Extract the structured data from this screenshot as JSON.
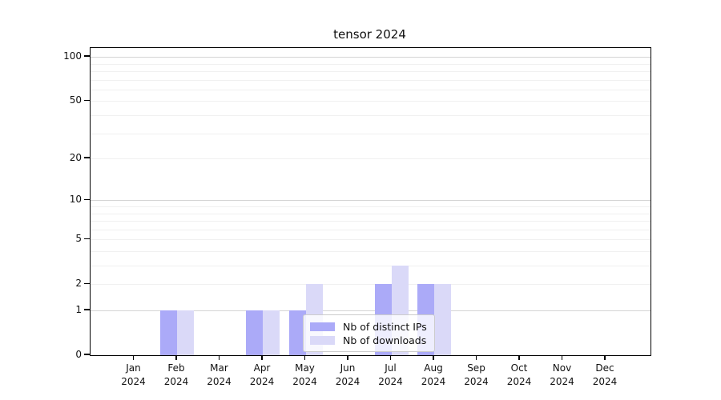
{
  "title": "tensor 2024",
  "chart_data": {
    "type": "bar",
    "title": "tensor 2024",
    "x_months": [
      "Jan",
      "Feb",
      "Mar",
      "Apr",
      "May",
      "Jun",
      "Jul",
      "Aug",
      "Sep",
      "Oct",
      "Nov",
      "Dec"
    ],
    "x_year": "2024",
    "categories": [
      "Jan 2024",
      "Feb 2024",
      "Mar 2024",
      "Apr 2024",
      "May 2024",
      "Jun 2024",
      "Jul 2024",
      "Aug 2024",
      "Sep 2024",
      "Oct 2024",
      "Nov 2024",
      "Dec 2024"
    ],
    "series": [
      {
        "name": "Nb of distinct IPs",
        "color": "#abaaf8",
        "values": [
          0,
          1,
          0,
          1,
          1,
          0,
          2,
          2,
          0,
          0,
          0,
          0
        ]
      },
      {
        "name": "Nb of downloads",
        "color": "#dad9f8",
        "values": [
          0,
          1,
          0,
          1,
          2,
          0,
          3,
          2,
          0,
          0,
          0,
          0
        ]
      }
    ],
    "y_scale": "log1p",
    "ylim": [
      0,
      115
    ],
    "y_ticks": [
      100,
      50,
      20,
      10,
      5,
      2,
      1,
      0
    ],
    "grid_major_values": [
      1,
      10,
      100
    ],
    "grid_minor_values": [
      2,
      3,
      4,
      5,
      6,
      7,
      8,
      9,
      20,
      30,
      40,
      50,
      60,
      70,
      80,
      90
    ],
    "legend_position": "lower right inside",
    "grid": "horizontal",
    "colors": {
      "grid_minor": "#f0f0f0",
      "grid_major": "#d4d4d4",
      "spine": "#000000",
      "background": "#ffffff"
    }
  }
}
